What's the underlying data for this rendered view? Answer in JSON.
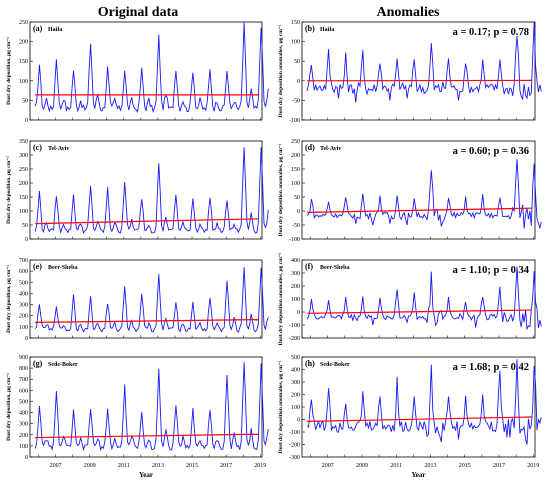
{
  "columns": {
    "left_title": "Original data",
    "right_title": "Anomalies"
  },
  "colors": {
    "series": "#1a1aff",
    "trend": "#ff0000",
    "frame": "#000000"
  },
  "x_axis": {
    "label": "Year",
    "year_ticks": [
      "2007",
      "2009",
      "2011",
      "2013",
      "2015",
      "2017",
      "2019"
    ],
    "xlim": [
      2006.0,
      2019.6
    ]
  },
  "chart_data": [
    {
      "panel": "(a)",
      "station": "Haifa",
      "type": "line",
      "column": "original",
      "ylabel": "Dust dry deposition, µg cm⁻²",
      "ylim": [
        0,
        250
      ],
      "yticks": [
        "0",
        "50",
        "100",
        "150",
        "200",
        "250"
      ],
      "trend": [
        64,
        64
      ],
      "peaks": [
        135,
        150,
        120,
        190,
        125,
        120,
        120,
        205,
        125,
        120,
        120,
        120,
        235
      ],
      "baseline": 20,
      "stats": ""
    },
    {
      "panel": "(b)",
      "station": "Haifa",
      "type": "line",
      "column": "anomaly",
      "ylabel": "Dust dry deposition anomalies, µg cm⁻²",
      "ylim": [
        -100,
        150
      ],
      "yticks": [
        "-100",
        "-50",
        "0",
        "50",
        "100",
        "150"
      ],
      "trend": [
        0,
        1
      ],
      "peaks": [
        50,
        70,
        60,
        80,
        55,
        50,
        60,
        95,
        60,
        55,
        50,
        65,
        140
      ],
      "troughs": [
        -50,
        -45,
        -55,
        -60,
        -50,
        -45,
        -55,
        -60,
        -50,
        -55,
        -50,
        -60,
        -80
      ],
      "stats": "a = 0.17;  p = 0.78"
    },
    {
      "panel": "(c)",
      "station": "Tel-Aviv",
      "type": "line",
      "column": "original",
      "ylabel": "Dust dry deposition, µg cm⁻²",
      "ylim": [
        0,
        350
      ],
      "yticks": [
        "0",
        "50",
        "100",
        "150",
        "200",
        "250",
        "300",
        "350"
      ],
      "trend": [
        55,
        72
      ],
      "peaks": [
        160,
        150,
        150,
        180,
        170,
        200,
        140,
        265,
        150,
        140,
        140,
        130,
        325
      ],
      "baseline": 20,
      "stats": ""
    },
    {
      "panel": "(d)",
      "station": "Tel-Aviv",
      "type": "line",
      "column": "anomaly",
      "ylabel": "Dust dry deposition anomalies, µg cm⁻²",
      "ylim": [
        -100,
        250
      ],
      "yticks": [
        "-100",
        "-50",
        "0",
        "50",
        "100",
        "150",
        "200",
        "250"
      ],
      "trend": [
        -5,
        10
      ],
      "peaks": [
        45,
        35,
        45,
        60,
        55,
        55,
        45,
        140,
        60,
        50,
        50,
        45,
        210
      ],
      "troughs": [
        -50,
        -45,
        -45,
        -50,
        -45,
        -50,
        -45,
        -55,
        -50,
        -45,
        -50,
        -55,
        -60
      ],
      "stats": "a = 0.60;  p = 0.36"
    },
    {
      "panel": "(e)",
      "station": "Beer-Sheba",
      "type": "line",
      "column": "original",
      "ylabel": "Dust dry deposition, µg cm⁻²",
      "ylim": [
        0,
        700
      ],
      "yticks": [
        "0",
        "100",
        "200",
        "300",
        "400",
        "500",
        "600",
        "700"
      ],
      "trend": [
        140,
        165
      ],
      "peaks": [
        300,
        280,
        360,
        340,
        300,
        460,
        380,
        540,
        320,
        300,
        350,
        490,
        620
      ],
      "baseline": 50,
      "stats": ""
    },
    {
      "panel": "(f)",
      "station": "Beer-Sheba",
      "type": "line",
      "column": "anomaly",
      "ylabel": "Dust dry deposition anomalies, µg cm⁻²",
      "ylim": [
        -200,
        400
      ],
      "yticks": [
        "-200",
        "-100",
        "0",
        "100",
        "200",
        "300",
        "400"
      ],
      "trend": [
        -10,
        15
      ],
      "peaks": [
        90,
        80,
        120,
        110,
        90,
        200,
        140,
        290,
        110,
        95,
        130,
        240,
        370
      ],
      "troughs": [
        -110,
        -100,
        -120,
        -100,
        -115,
        -110,
        -120,
        -130,
        -110,
        -120,
        -115,
        -125,
        -130
      ],
      "stats": "a = 1.10;  p = 0.34"
    },
    {
      "panel": "(g)",
      "station": "Sede-Boker",
      "type": "line",
      "column": "original",
      "ylabel": "Dust dry deposition, µg cm⁻²",
      "ylim": [
        0,
        900
      ],
      "yticks": [
        "0",
        "100",
        "200",
        "300",
        "400",
        "500",
        "600",
        "700",
        "800",
        "900"
      ],
      "trend": [
        175,
        205
      ],
      "peaks": [
        440,
        550,
        380,
        420,
        420,
        610,
        370,
        780,
        440,
        400,
        420,
        700,
        820
      ],
      "baseline": 60,
      "stats": ""
    },
    {
      "panel": "(h)",
      "station": "Sede-Boker",
      "type": "line",
      "column": "anomaly",
      "ylabel": "Dust dry deposition anomalies, µg cm⁻²",
      "ylim": [
        -300,
        500
      ],
      "yticks": [
        "-300",
        "-200",
        "-100",
        "0",
        "100",
        "200",
        "300",
        "400",
        "500"
      ],
      "trend": [
        -15,
        20
      ],
      "peaks": [
        200,
        280,
        150,
        200,
        190,
        290,
        160,
        400,
        210,
        180,
        200,
        380,
        480
      ],
      "troughs": [
        -150,
        -140,
        -160,
        -150,
        -160,
        -170,
        -150,
        -180,
        -160,
        -170,
        -160,
        -180,
        -200
      ],
      "stats": "a = 1.68;  p = 0.42"
    }
  ]
}
